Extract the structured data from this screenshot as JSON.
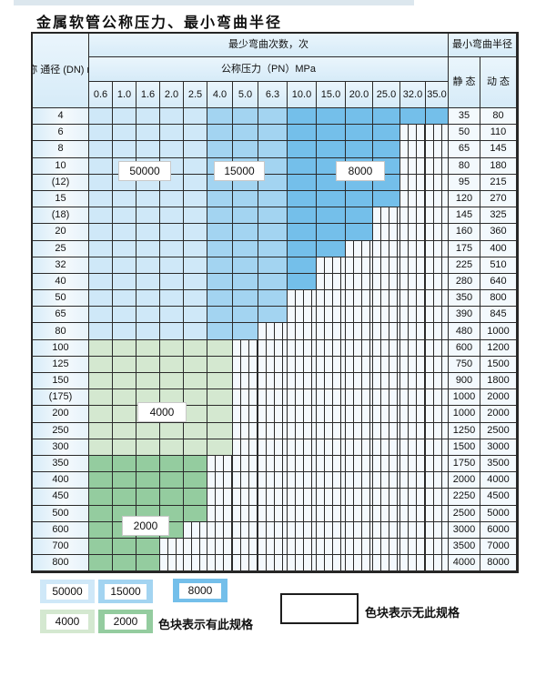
{
  "title": "金属软管公称压力、最小弯曲半径",
  "colors": {
    "blue50000": "#cfe8f8",
    "blue15000": "#a3d4f1",
    "blue8000": "#74bfea",
    "green4000": "#d4e8d0",
    "green2000": "#94cc9f"
  },
  "table": {
    "dn_header_lines": [
      "公称",
      "通径",
      "(DN)",
      "mm"
    ],
    "cycles_header": "最少弯曲次数，次",
    "pressure_header": "公称压力（PN）MPa",
    "radius_header": "最小弯曲半径",
    "static_label": "静 态",
    "dynamic_label": "动 态",
    "pressures": [
      "0.6",
      "1.0",
      "1.6",
      "2.0",
      "2.5",
      "4.0",
      "5.0",
      "6.3",
      "10.0",
      "15.0",
      "20.0",
      "25.0",
      "32.0",
      "35.0"
    ],
    "rows": [
      {
        "dn": "4",
        "colored": 14,
        "scheme": "blue",
        "static": "35",
        "dynamic": "80"
      },
      {
        "dn": "6",
        "colored": 12,
        "scheme": "blue",
        "static": "50",
        "dynamic": "110"
      },
      {
        "dn": "8",
        "colored": 12,
        "scheme": "blue",
        "static": "65",
        "dynamic": "145"
      },
      {
        "dn": "10",
        "colored": 12,
        "scheme": "blue",
        "static": "80",
        "dynamic": "180"
      },
      {
        "dn": "(12)",
        "colored": 12,
        "scheme": "blue",
        "static": "95",
        "dynamic": "215"
      },
      {
        "dn": "15",
        "colored": 12,
        "scheme": "blue",
        "static": "120",
        "dynamic": "270"
      },
      {
        "dn": "(18)",
        "colored": 11,
        "scheme": "blue",
        "static": "145",
        "dynamic": "325"
      },
      {
        "dn": "20",
        "colored": 11,
        "scheme": "blue",
        "static": "160",
        "dynamic": "360"
      },
      {
        "dn": "25",
        "colored": 10,
        "scheme": "blue",
        "static": "175",
        "dynamic": "400"
      },
      {
        "dn": "32",
        "colored": 9,
        "scheme": "blue",
        "static": "225",
        "dynamic": "510"
      },
      {
        "dn": "40",
        "colored": 9,
        "scheme": "blue",
        "static": "280",
        "dynamic": "640"
      },
      {
        "dn": "50",
        "colored": 8,
        "scheme": "blue",
        "static": "350",
        "dynamic": "800"
      },
      {
        "dn": "65",
        "colored": 8,
        "scheme": "blue",
        "static": "390",
        "dynamic": "845"
      },
      {
        "dn": "80",
        "colored": 7,
        "scheme": "blue",
        "static": "480",
        "dynamic": "1000"
      },
      {
        "dn": "100",
        "colored": 6,
        "scheme": "g4",
        "static": "600",
        "dynamic": "1200"
      },
      {
        "dn": "125",
        "colored": 6,
        "scheme": "g4",
        "static": "750",
        "dynamic": "1500"
      },
      {
        "dn": "150",
        "colored": 6,
        "scheme": "g4",
        "static": "900",
        "dynamic": "1800"
      },
      {
        "dn": "(175)",
        "colored": 6,
        "scheme": "g4",
        "static": "1000",
        "dynamic": "2000"
      },
      {
        "dn": "200",
        "colored": 6,
        "scheme": "g4",
        "static": "1000",
        "dynamic": "2000"
      },
      {
        "dn": "250",
        "colored": 6,
        "scheme": "g4",
        "static": "1250",
        "dynamic": "2500"
      },
      {
        "dn": "300",
        "colored": 6,
        "scheme": "g4",
        "static": "1500",
        "dynamic": "3000"
      },
      {
        "dn": "350",
        "colored": 5,
        "scheme": "g2",
        "static": "1750",
        "dynamic": "3500"
      },
      {
        "dn": "400",
        "colored": 5,
        "scheme": "g2",
        "static": "2000",
        "dynamic": "4000"
      },
      {
        "dn": "450",
        "colored": 5,
        "scheme": "g2",
        "static": "2250",
        "dynamic": "4500"
      },
      {
        "dn": "500",
        "colored": 5,
        "scheme": "g2",
        "static": "2500",
        "dynamic": "5000"
      },
      {
        "dn": "600",
        "colored": 4,
        "scheme": "g2",
        "static": "3000",
        "dynamic": "6000"
      },
      {
        "dn": "700",
        "colored": 3,
        "scheme": "g2",
        "static": "3500",
        "dynamic": "7000"
      },
      {
        "dn": "800",
        "colored": 3,
        "scheme": "g2",
        "static": "4000",
        "dynamic": "8000"
      }
    ]
  },
  "overlays": [
    {
      "label": "50000"
    },
    {
      "label": "15000"
    },
    {
      "label": "8000"
    },
    {
      "label": "4000"
    },
    {
      "label": "2000"
    }
  ],
  "legend": {
    "swatches": [
      {
        "label": "50000",
        "color_key": "blue50000"
      },
      {
        "label": "15000",
        "color_key": "blue15000"
      },
      {
        "label": "8000",
        "color_key": "blue8000"
      },
      {
        "label": "4000",
        "color_key": "green4000"
      },
      {
        "label": "2000",
        "color_key": "green2000"
      }
    ],
    "has_spec_text": "色块表示有此规格",
    "no_spec_text": "色块表示无此规格"
  }
}
